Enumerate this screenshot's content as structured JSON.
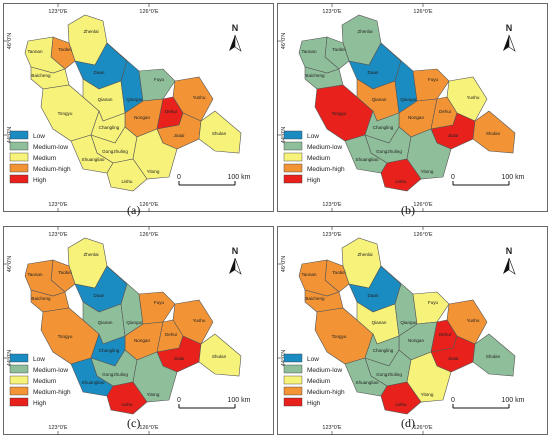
{
  "panels": [
    {
      "label": "(a)",
      "lon_labels": [
        "123°0'E",
        "126°0'E"
      ],
      "lat_labels": [
        "46°0'N",
        "44°0'N"
      ],
      "counties": {
        "zhenlai": "Medium",
        "taobei": "Medium-high",
        "taonan": "Medium",
        "baicheng": "Medium",
        "tongyu": "Medium",
        "daan": "Low",
        "qianan": "Medium",
        "qianguo": "Low",
        "fuyu": "Medium-low",
        "yushu": "Medium-high",
        "nongan": "Medium-high",
        "dehui": "High",
        "jiutai": "Medium-high",
        "changling": "Medium",
        "gongzhuling": "Medium",
        "shulan": "Medium",
        "yitong": "Medium",
        "shuangliao": "Medium",
        "lishu": "Medium"
      }
    },
    {
      "label": "(b)",
      "lon_labels": [
        "123°0'E",
        "126°0'E"
      ],
      "lat_labels": [
        "46°0'N",
        "44°0'N"
      ],
      "counties": {
        "zhenlai": "Medium-low",
        "taobei": "Medium-low",
        "taonan": "Medium-low",
        "baicheng": "Medium-low",
        "tongyu": "High",
        "daan": "Low",
        "qianan": "Medium-high",
        "qianguo": "Low",
        "fuyu": "Medium-high",
        "yushu": "Medium",
        "nongan": "Medium-high",
        "dehui": "Medium-high",
        "jiutai": "High",
        "changling": "Medium-low",
        "gongzhuling": "Medium-low",
        "shulan": "Medium-high",
        "yitong": "Medium-low",
        "shuangliao": "Medium-low",
        "lishu": "High"
      }
    },
    {
      "label": "(c)",
      "lon_labels": [
        "123°0'E",
        "126°0'E"
      ],
      "lat_labels": [
        "46°0'N",
        "44°0'N"
      ],
      "counties": {
        "zhenlai": "Medium",
        "taobei": "Medium-high",
        "taonan": "Medium-high",
        "baicheng": "Medium-high",
        "tongyu": "Medium-high",
        "daan": "Low",
        "qianan": "Medium-low",
        "qianguo": "Medium-low",
        "fuyu": "Medium-high",
        "yushu": "Medium-high",
        "nongan": "Medium-high",
        "dehui": "Medium-high",
        "jiutai": "High",
        "changling": "Low",
        "gongzhuling": "Medium-low",
        "shulan": "Medium",
        "yitong": "Medium-low",
        "shuangliao": "Low",
        "lishu": "High"
      }
    },
    {
      "label": "(d)",
      "lon_labels": [
        "123°0'E",
        "126°0'E"
      ],
      "lat_labels": [
        "46°0'N",
        "44°0'N"
      ],
      "counties": {
        "zhenlai": "Medium",
        "taobei": "Medium-high",
        "taonan": "Medium-high",
        "baicheng": "Medium-high",
        "tongyu": "Medium-high",
        "daan": "Low",
        "qianan": "Medium",
        "qianguo": "Medium-low",
        "fuyu": "Medium",
        "yushu": "Medium-high",
        "nongan": "Medium-low",
        "dehui": "High",
        "jiutai": "High",
        "changling": "Medium-low",
        "gongzhuling": "Medium-low",
        "shulan": "Medium-low",
        "yitong": "Medium",
        "shuangliao": "Medium-low",
        "lishu": "High"
      }
    }
  ],
  "county_names": {
    "zhenlai": "Zhenlai",
    "taobei": "Taobei",
    "taonan": "Taonan",
    "baicheng": "Baicheng",
    "tongyu": "Tongyu",
    "daan": "Daan",
    "qianan": "Qianan",
    "qianguo": "Qianguo",
    "fuyu": "Fuyu",
    "yushu": "Yushu",
    "nongan": "Nongan",
    "dehui": "Dehui",
    "jiutai": "Jiutai",
    "changling": "Changling",
    "gongzhuling": "Gongzhuling",
    "shulan": "Shulan",
    "yitong": "Yitong",
    "shuangliao": "Shuangliao",
    "lishu": "Lishu"
  },
  "legend": [
    {
      "label": "Low",
      "color": "#1b8cc1"
    },
    {
      "label": "Medium-low",
      "color": "#8fbf9a"
    },
    {
      "label": "Medium",
      "color": "#f7f27a"
    },
    {
      "label": "Medium-high",
      "color": "#f29436"
    },
    {
      "label": "High",
      "color": "#e8211c"
    }
  ],
  "north_label": "N",
  "scale": {
    "zero": "0",
    "value": "100 km"
  }
}
